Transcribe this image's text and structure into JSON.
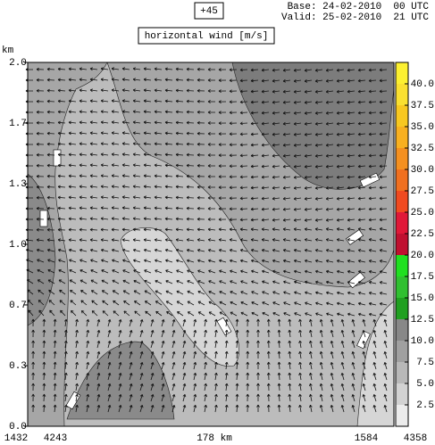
{
  "chart_data": {
    "type": "cross-section",
    "run": "+45",
    "base": "Base: 24-02-2010  00 UTC",
    "valid": "Valid: 25-02-2010  21 UTC",
    "title": "horizontal wind [m/s]",
    "ylabel": "km",
    "ylim": [
      0,
      2
    ],
    "yticks": [
      {
        "value": 0,
        "label": "0.0"
      },
      {
        "value": 0.333,
        "label": "0.3"
      },
      {
        "value": 0.667,
        "label": "0.7"
      },
      {
        "value": 1,
        "label": "1.0"
      },
      {
        "value": 1.333,
        "label": "1.3"
      },
      {
        "value": 1.667,
        "label": "1.7"
      },
      {
        "value": 2,
        "label": "2.0"
      }
    ],
    "x_labels": [
      "1432",
      "4243",
      "178 km",
      "1584",
      "4358"
    ],
    "colorbar": {
      "clim": [
        0,
        42.5
      ],
      "colors": [
        "#ececec",
        "#d2d2d2",
        "#b8b8b8",
        "#a0a0a0",
        "#888888",
        "#20a020",
        "#30c030",
        "#20e020",
        "#c01030",
        "#e01838",
        "#f04a20",
        "#f07020",
        "#f49020",
        "#f8b020",
        "#f8c820",
        "#fae030",
        "#fcf030"
      ],
      "ticks": [
        {
          "value": 2.5,
          "label": "2.5"
        },
        {
          "value": 5,
          "label": "5.0"
        },
        {
          "value": 7.5,
          "label": "7.5"
        },
        {
          "value": 10,
          "label": "10.0"
        },
        {
          "value": 12.5,
          "label": "12.5"
        },
        {
          "value": 15,
          "label": "15.0"
        },
        {
          "value": 17.5,
          "label": "17.5"
        },
        {
          "value": 20,
          "label": "20.0"
        },
        {
          "value": 22.5,
          "label": "22.5"
        },
        {
          "value": 25,
          "label": "25.0"
        },
        {
          "value": 27.5,
          "label": "27.5"
        },
        {
          "value": 30,
          "label": "30.0"
        },
        {
          "value": 32.5,
          "label": "32.5"
        },
        {
          "value": 35,
          "label": "35.0"
        },
        {
          "value": 37.5,
          "label": "37.5"
        },
        {
          "value": 40,
          "label": "40.0"
        }
      ]
    }
  }
}
